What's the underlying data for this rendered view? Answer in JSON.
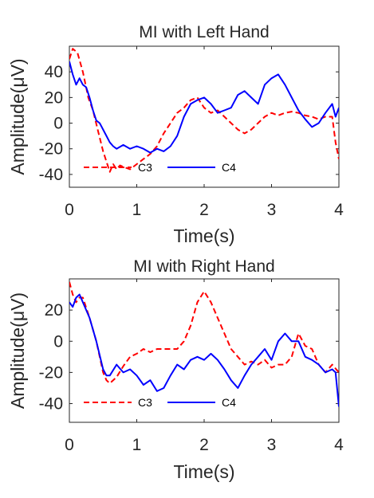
{
  "chart_data": [
    {
      "type": "line",
      "title": "MI with Left Hand",
      "xlabel": "Time(s)",
      "ylabel": "Amplitude(μV)",
      "xlim": [
        0,
        4
      ],
      "ylim": [
        -50,
        60
      ],
      "xticks": [
        0,
        1,
        2,
        3,
        4
      ],
      "yticks": [
        -40,
        -20,
        0,
        20,
        40
      ],
      "grid": false,
      "legend_position": "bottom-left",
      "series": [
        {
          "name": "C3",
          "color": "#ff0000",
          "style": "dashed",
          "x": [
            0,
            0.05,
            0.12,
            0.2,
            0.28,
            0.35,
            0.42,
            0.5,
            0.55,
            0.6,
            0.65,
            0.7,
            0.75,
            0.8,
            0.9,
            1.0,
            1.1,
            1.2,
            1.3,
            1.4,
            1.5,
            1.6,
            1.7,
            1.8,
            1.9,
            2.0,
            2.1,
            2.2,
            2.3,
            2.4,
            2.5,
            2.6,
            2.7,
            2.8,
            2.9,
            3.0,
            3.1,
            3.2,
            3.3,
            3.4,
            3.5,
            3.6,
            3.7,
            3.8,
            3.9,
            3.95,
            4.0
          ],
          "values": [
            50,
            58,
            55,
            40,
            20,
            10,
            -5,
            -22,
            -30,
            -38,
            -32,
            -36,
            -33,
            -34,
            -36,
            -32,
            -28,
            -24,
            -18,
            -8,
            0,
            8,
            12,
            18,
            20,
            12,
            8,
            10,
            5,
            0,
            -5,
            -8,
            -5,
            0,
            5,
            8,
            6,
            8,
            9,
            8,
            6,
            5,
            3,
            5,
            5,
            -15,
            -28
          ]
        },
        {
          "name": "C4",
          "color": "#0000ff",
          "style": "solid",
          "x": [
            0,
            0.05,
            0.1,
            0.15,
            0.2,
            0.25,
            0.3,
            0.35,
            0.4,
            0.45,
            0.5,
            0.55,
            0.6,
            0.65,
            0.7,
            0.8,
            0.9,
            1.0,
            1.1,
            1.2,
            1.3,
            1.4,
            1.5,
            1.6,
            1.7,
            1.8,
            1.9,
            2.0,
            2.1,
            2.2,
            2.3,
            2.4,
            2.5,
            2.6,
            2.7,
            2.8,
            2.9,
            3.0,
            3.1,
            3.2,
            3.3,
            3.4,
            3.5,
            3.6,
            3.7,
            3.8,
            3.9,
            3.95,
            4.0
          ],
          "values": [
            48,
            38,
            30,
            35,
            30,
            28,
            20,
            10,
            2,
            0,
            -5,
            -10,
            -15,
            -18,
            -20,
            -17,
            -20,
            -18,
            -20,
            -23,
            -20,
            -22,
            -18,
            -10,
            5,
            15,
            18,
            20,
            15,
            8,
            10,
            12,
            22,
            25,
            20,
            15,
            30,
            35,
            38,
            30,
            20,
            10,
            3,
            -3,
            0,
            8,
            15,
            5,
            12
          ]
        }
      ]
    },
    {
      "type": "line",
      "title": "MI with Right Hand",
      "xlabel": "Time(s)",
      "ylabel": "Amplitude(μV)",
      "xlim": [
        0,
        4
      ],
      "ylim": [
        -52,
        40
      ],
      "xticks": [
        0,
        1,
        2,
        3,
        4
      ],
      "yticks": [
        -40,
        -20,
        0,
        20
      ],
      "grid": false,
      "legend_position": "bottom-left",
      "series": [
        {
          "name": "C3",
          "color": "#ff0000",
          "style": "dashed",
          "x": [
            0,
            0.05,
            0.1,
            0.15,
            0.2,
            0.3,
            0.4,
            0.5,
            0.55,
            0.6,
            0.7,
            0.8,
            0.9,
            1.0,
            1.1,
            1.2,
            1.3,
            1.4,
            1.5,
            1.6,
            1.7,
            1.8,
            1.9,
            2.0,
            2.1,
            2.2,
            2.3,
            2.4,
            2.5,
            2.6,
            2.7,
            2.8,
            2.9,
            3.0,
            3.1,
            3.2,
            3.3,
            3.4,
            3.5,
            3.6,
            3.7,
            3.8,
            3.9,
            4.0
          ],
          "values": [
            38,
            30,
            25,
            28,
            28,
            15,
            0,
            -20,
            -25,
            -27,
            -23,
            -16,
            -10,
            -8,
            -5,
            -7,
            -5,
            -5,
            -5,
            -5,
            0,
            10,
            25,
            32,
            25,
            15,
            5,
            -5,
            -10,
            -15,
            -13,
            -15,
            -12,
            -17,
            -15,
            -15,
            -10,
            5,
            -3,
            -5,
            -15,
            -20,
            -15,
            -20
          ]
        },
        {
          "name": "C4",
          "color": "#0000ff",
          "style": "solid",
          "x": [
            0,
            0.05,
            0.1,
            0.15,
            0.2,
            0.3,
            0.4,
            0.5,
            0.55,
            0.6,
            0.7,
            0.8,
            0.9,
            1.0,
            1.1,
            1.2,
            1.3,
            1.4,
            1.5,
            1.6,
            1.7,
            1.8,
            1.9,
            2.0,
            2.1,
            2.2,
            2.3,
            2.4,
            2.5,
            2.6,
            2.7,
            2.8,
            2.9,
            3.0,
            3.1,
            3.2,
            3.3,
            3.4,
            3.5,
            3.6,
            3.7,
            3.8,
            3.9,
            3.95,
            4.0
          ],
          "values": [
            25,
            22,
            28,
            30,
            25,
            15,
            0,
            -18,
            -22,
            -22,
            -15,
            -20,
            -18,
            -22,
            -28,
            -25,
            -32,
            -30,
            -22,
            -15,
            -18,
            -12,
            -10,
            -12,
            -8,
            -12,
            -18,
            -25,
            -30,
            -22,
            -15,
            -10,
            -5,
            -12,
            0,
            5,
            0,
            0,
            -10,
            -12,
            -15,
            -20,
            -18,
            -20,
            -42
          ]
        }
      ]
    }
  ]
}
